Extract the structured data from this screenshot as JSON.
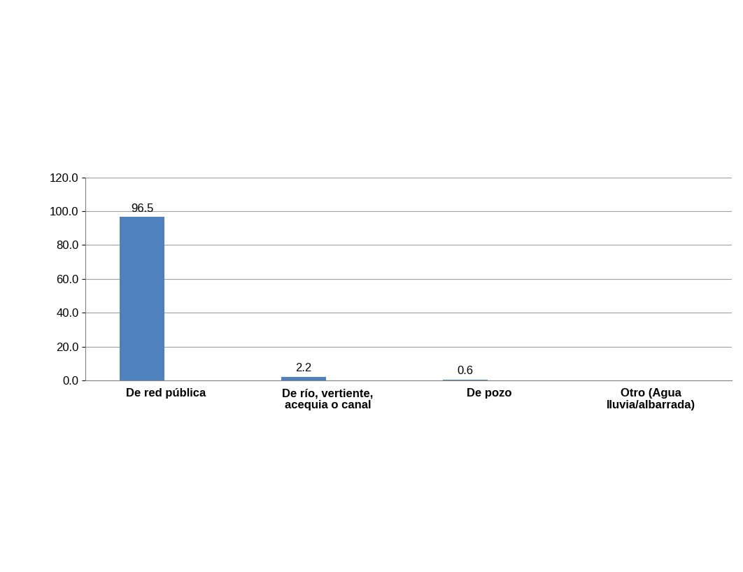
{
  "chart_data": {
    "type": "bar",
    "categories": [
      "De red pública",
      "De río, vertiente, acequia o canal",
      "De pozo",
      "Otro (Agua lluvia/albarrada)"
    ],
    "values": [
      96.5,
      2.2,
      0.6,
      null
    ],
    "color": "#4f81bd",
    "ylim": [
      0,
      120
    ],
    "yticks": [
      {
        "value": 0,
        "label": "0.0"
      },
      {
        "value": 20,
        "label": "20.0"
      },
      {
        "value": 40,
        "label": "40.0"
      },
      {
        "value": 60,
        "label": "60.0"
      },
      {
        "value": 80,
        "label": "80.0"
      },
      {
        "value": 100,
        "label": "100.0"
      },
      {
        "value": 120,
        "label": "120.0"
      }
    ],
    "grid": true,
    "data_labels": true
  }
}
